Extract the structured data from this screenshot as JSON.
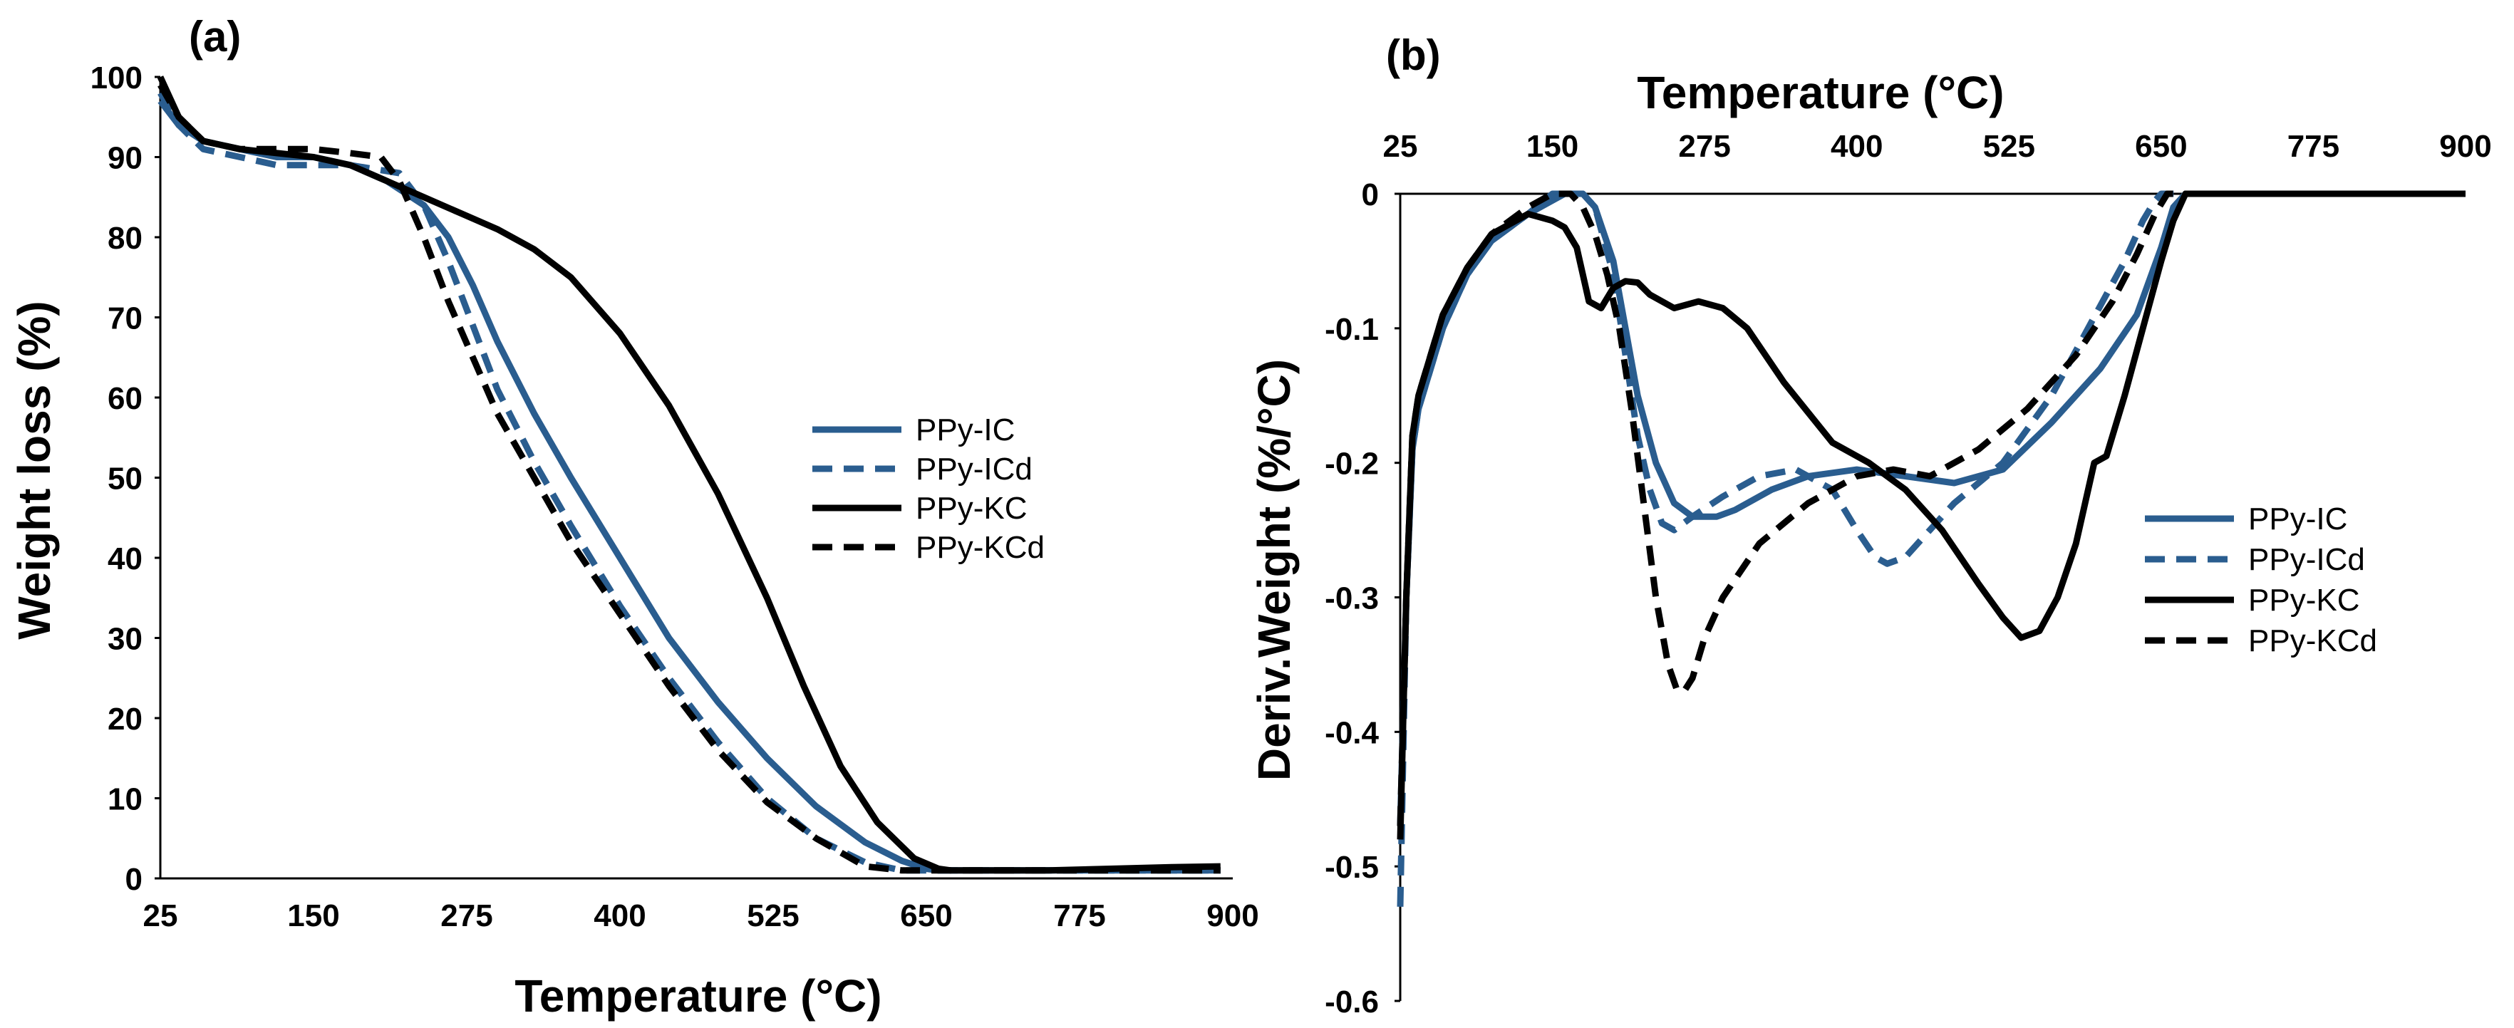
{
  "chart_data": [
    {
      "panel_label": "(a)",
      "type": "line",
      "xlabel": "Temperature (°C)",
      "ylabel": "Weight loss (%)",
      "xlim": [
        25,
        900
      ],
      "ylim": [
        0,
        100
      ],
      "x_ticks": [
        25,
        150,
        275,
        400,
        525,
        650,
        775,
        900
      ],
      "y_ticks": [
        0,
        10,
        20,
        30,
        40,
        50,
        60,
        70,
        80,
        90,
        100
      ],
      "legend_position": "center-right",
      "series": [
        {
          "name": "PPy-IC",
          "color": "#2a5d8f",
          "dash": "solid",
          "x": [
            25,
            40,
            60,
            90,
            120,
            150,
            180,
            210,
            240,
            260,
            280,
            300,
            330,
            360,
            400,
            440,
            480,
            520,
            560,
            600,
            630,
            650,
            660,
            670,
            700,
            750,
            800,
            850,
            890
          ],
          "y": [
            97,
            94,
            92,
            91,
            90,
            90,
            89,
            87,
            84,
            80,
            74,
            67,
            58,
            50,
            40,
            30,
            22,
            15,
            9,
            4.5,
            2.2,
            1.2,
            1,
            1,
            1,
            1,
            1,
            1,
            1
          ]
        },
        {
          "name": "PPy-ICd",
          "color": "#2a5d8f",
          "dash": "dashed",
          "x": [
            25,
            40,
            60,
            90,
            120,
            150,
            180,
            200,
            220,
            240,
            260,
            280,
            300,
            330,
            360,
            400,
            440,
            480,
            520,
            560,
            600,
            630,
            650,
            660,
            670,
            700,
            800,
            890
          ],
          "y": [
            98,
            94,
            91,
            90,
            89,
            89,
            89,
            88.5,
            88,
            84,
            77,
            69,
            61,
            52,
            44,
            34,
            25,
            17,
            10,
            5,
            2,
            1,
            1,
            1,
            1,
            1,
            1,
            1
          ]
        },
        {
          "name": "PPy-KC",
          "color": "#000000",
          "dash": "solid",
          "x": [
            25,
            40,
            60,
            90,
            120,
            150,
            180,
            210,
            240,
            270,
            300,
            330,
            360,
            400,
            440,
            480,
            520,
            550,
            580,
            610,
            640,
            660,
            670,
            690,
            750,
            800,
            850,
            890
          ],
          "y": [
            100,
            95,
            92,
            91,
            90.5,
            90,
            89,
            87,
            85,
            83,
            81,
            78.5,
            75,
            68,
            59,
            48,
            35,
            24,
            14,
            7,
            2.5,
            1.2,
            1,
            1,
            1,
            1.2,
            1.4,
            1.5
          ]
        },
        {
          "name": "PPy-KCd",
          "color": "#000000",
          "dash": "dashed",
          "x": [
            25,
            40,
            60,
            90,
            120,
            150,
            180,
            205,
            220,
            240,
            260,
            280,
            300,
            330,
            360,
            400,
            440,
            480,
            520,
            560,
            600,
            630,
            650,
            670,
            700,
            800,
            890
          ],
          "y": [
            99,
            95,
            92,
            91,
            91,
            91,
            90.5,
            90,
            87,
            80,
            72,
            65,
            58,
            50,
            42,
            33,
            24,
            16,
            9.5,
            5,
            1.5,
            1,
            1,
            1,
            1,
            1,
            1
          ]
        }
      ]
    },
    {
      "panel_label": "(b)",
      "type": "line",
      "xlabel": "Temperature (°C)",
      "ylabel": "Deriv.Weight (%/°C)",
      "xlim": [
        25,
        900
      ],
      "ylim": [
        -0.6,
        0
      ],
      "x_ticks": [
        25,
        150,
        275,
        400,
        525,
        650,
        775,
        900
      ],
      "y_ticks": [
        0,
        -0.1,
        -0.2,
        -0.3,
        -0.4,
        -0.5,
        -0.6
      ],
      "x_axis_position": "top",
      "legend_position": "bottom-right",
      "series": [
        {
          "name": "PPy-IC",
          "color": "#2a5d8f",
          "dash": "solid",
          "x": [
            25,
            30,
            35,
            40,
            50,
            60,
            80,
            100,
            130,
            150,
            160,
            175,
            185,
            200,
            210,
            220,
            235,
            250,
            265,
            285,
            300,
            330,
            360,
            400,
            440,
            480,
            520,
            560,
            600,
            630,
            650,
            660,
            670,
            700,
            780,
            900
          ],
          "y": [
            -0.47,
            -0.3,
            -0.19,
            -0.16,
            -0.13,
            -0.1,
            -0.06,
            -0.035,
            -0.015,
            -0.005,
            0,
            0,
            -0.01,
            -0.05,
            -0.1,
            -0.15,
            -0.2,
            -0.23,
            -0.24,
            -0.24,
            -0.235,
            -0.22,
            -0.21,
            -0.205,
            -0.21,
            -0.215,
            -0.205,
            -0.17,
            -0.13,
            -0.09,
            -0.04,
            -0.01,
            0,
            0,
            0,
            0
          ]
        },
        {
          "name": "PPy-ICd",
          "color": "#2a5d8f",
          "dash": "dashed",
          "x": [
            25,
            30,
            35,
            40,
            50,
            60,
            80,
            100,
            130,
            150,
            160,
            175,
            185,
            200,
            210,
            220,
            230,
            240,
            250,
            265,
            290,
            320,
            350,
            380,
            400,
            415,
            425,
            440,
            460,
            480,
            520,
            560,
            590,
            620,
            635,
            645,
            650,
            700,
            850,
            900
          ],
          "y": [
            -0.53,
            -0.3,
            -0.19,
            -0.16,
            -0.13,
            -0.1,
            -0.06,
            -0.035,
            -0.015,
            0,
            0,
            0,
            -0.01,
            -0.06,
            -0.12,
            -0.18,
            -0.22,
            -0.245,
            -0.25,
            -0.24,
            -0.225,
            -0.21,
            -0.205,
            -0.22,
            -0.25,
            -0.27,
            -0.275,
            -0.27,
            -0.25,
            -0.23,
            -0.2,
            -0.15,
            -0.1,
            -0.05,
            -0.02,
            -0.005,
            0,
            0,
            0,
            0
          ]
        },
        {
          "name": "PPy-KC",
          "color": "#000000",
          "dash": "solid",
          "x": [
            25,
            30,
            35,
            40,
            50,
            60,
            80,
            100,
            130,
            150,
            160,
            170,
            180,
            190,
            200,
            210,
            220,
            230,
            250,
            270,
            290,
            310,
            340,
            380,
            410,
            440,
            470,
            500,
            520,
            535,
            550,
            565,
            580,
            595,
            605,
            620,
            635,
            650,
            660,
            670,
            700,
            780,
            900
          ],
          "y": [
            -0.48,
            -0.3,
            -0.18,
            -0.15,
            -0.12,
            -0.09,
            -0.055,
            -0.03,
            -0.015,
            -0.02,
            -0.025,
            -0.04,
            -0.08,
            -0.085,
            -0.07,
            -0.065,
            -0.066,
            -0.075,
            -0.085,
            -0.08,
            -0.085,
            -0.1,
            -0.14,
            -0.185,
            -0.2,
            -0.22,
            -0.25,
            -0.29,
            -0.315,
            -0.33,
            -0.325,
            -0.3,
            -0.26,
            -0.2,
            -0.195,
            -0.15,
            -0.1,
            -0.05,
            -0.02,
            0,
            0,
            0,
            0
          ]
        },
        {
          "name": "PPy-KCd",
          "color": "#000000",
          "dash": "dashed",
          "x": [
            25,
            30,
            35,
            40,
            50,
            60,
            80,
            100,
            130,
            150,
            165,
            175,
            185,
            195,
            205,
            215,
            225,
            235,
            245,
            252,
            258,
            265,
            275,
            290,
            320,
            360,
            400,
            430,
            460,
            500,
            540,
            580,
            610,
            630,
            645,
            655,
            700,
            900
          ],
          "y": [
            -0.47,
            -0.3,
            -0.18,
            -0.15,
            -0.12,
            -0.09,
            -0.055,
            -0.03,
            -0.01,
            0,
            0,
            -0.01,
            -0.03,
            -0.06,
            -0.1,
            -0.16,
            -0.23,
            -0.3,
            -0.35,
            -0.368,
            -0.37,
            -0.36,
            -0.33,
            -0.3,
            -0.26,
            -0.23,
            -0.21,
            -0.205,
            -0.21,
            -0.19,
            -0.16,
            -0.12,
            -0.08,
            -0.045,
            -0.015,
            0,
            0,
            0
          ]
        }
      ]
    }
  ]
}
